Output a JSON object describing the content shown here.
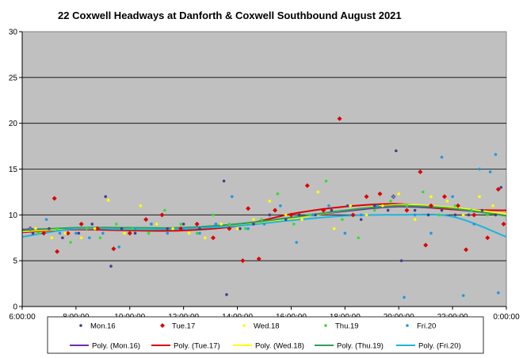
{
  "chart_data": {
    "type": "scatter",
    "title": "22 Coxwell Headways at Danforth & Coxwell Southbound August 2021",
    "xlabel": "",
    "ylabel": "",
    "x_unit": "time of day (hours)",
    "xlim": [
      6,
      24
    ],
    "ylim": [
      0,
      30
    ],
    "x_ticks": [
      "6:00:00",
      "8:00:00",
      "10:00:00",
      "12:00:00",
      "14:00:00",
      "16:00:00",
      "18:00:00",
      "20:00:00",
      "22:00:00",
      "0:00:00"
    ],
    "y_ticks": [
      "0",
      "5",
      "10",
      "15",
      "20",
      "25",
      "30"
    ],
    "grid": "horizontal",
    "plot_background": "#c0c0c0",
    "legend_position": "bottom",
    "series": [
      {
        "name": "Mon.16",
        "marker": "dot",
        "color": "#4b3c8c",
        "x": [
          6.4,
          7.0,
          7.5,
          8.1,
          8.6,
          9.1,
          9.3,
          9.7,
          10.2,
          10.8,
          11.4,
          12.0,
          12.6,
          13.2,
          13.5,
          13.6,
          14.1,
          14.6,
          15.2,
          15.8,
          16.3,
          16.9,
          17.5,
          18.1,
          18.6,
          19.1,
          19.6,
          19.9,
          20.1,
          20.6,
          21.1,
          21.6,
          22.1,
          22.6,
          23.1,
          23.6,
          23.8
        ],
        "y": [
          8,
          8.5,
          7.5,
          8,
          9,
          12,
          4.4,
          8.5,
          8,
          9,
          8.5,
          9,
          8.5,
          9,
          13.7,
          1.3,
          8.5,
          9,
          10,
          9.5,
          10,
          10,
          10.5,
          11,
          9.5,
          11,
          10.5,
          17,
          5,
          10.5,
          10,
          10.5,
          10,
          10,
          10.5,
          10,
          13
        ]
      },
      {
        "name": "Tue.17",
        "marker": "diamond",
        "color": "#dd0000",
        "x": [
          6.3,
          6.8,
          7.2,
          7.3,
          7.7,
          8.2,
          8.8,
          9.4,
          10.0,
          10.6,
          11.2,
          11.9,
          12.5,
          13.1,
          13.7,
          14.2,
          14.4,
          14.8,
          15.4,
          16.0,
          16.6,
          17.2,
          17.8,
          18.3,
          18.8,
          19.3,
          19.8,
          20.3,
          20.8,
          21.0,
          21.2,
          21.7,
          22.2,
          22.5,
          22.8,
          23.3,
          23.7,
          23.9
        ],
        "y": [
          8.5,
          8,
          11.8,
          6,
          8,
          9,
          8.5,
          6.3,
          8,
          9.5,
          10,
          8.5,
          9,
          7.5,
          8.5,
          5,
          10.7,
          5.2,
          10.5,
          10,
          13.2,
          10.5,
          20.5,
          10,
          12,
          12.3,
          12,
          10.5,
          14.7,
          6.7,
          11,
          12,
          11,
          6.2,
          10,
          7.5,
          12.8,
          9
        ]
      },
      {
        "name": "Wed.18",
        "marker": "dot",
        "color": "#ffff00",
        "x": [
          6.5,
          7.1,
          7.6,
          8.2,
          8.7,
          9.2,
          9.8,
          10.4,
          11.0,
          11.6,
          12.2,
          12.8,
          13.4,
          14.0,
          14.6,
          15.2,
          15.8,
          16.4,
          17.0,
          17.6,
          18.2,
          18.8,
          19.4,
          20.0,
          20.6,
          21.2,
          21.8,
          22.4,
          23.0,
          23.5
        ],
        "y": [
          8.5,
          7.5,
          8,
          7.5,
          8.5,
          11.6,
          8,
          11,
          9,
          8.5,
          8,
          7.5,
          9,
          8.5,
          9.5,
          11.5,
          10,
          9.5,
          12.5,
          8.5,
          11,
          10,
          11,
          12.3,
          9.5,
          12,
          11.5,
          10,
          12,
          11
        ]
      },
      {
        "name": "Thu.19",
        "marker": "dot",
        "color": "#33dd33",
        "x": [
          6.6,
          7.3,
          7.8,
          8.4,
          8.9,
          9.5,
          10.1,
          10.7,
          11.3,
          11.9,
          12.5,
          13.1,
          13.7,
          14.3,
          14.9,
          15.5,
          16.1,
          16.7,
          17.3,
          17.9,
          18.5,
          19.1,
          19.7,
          20.3,
          20.9,
          21.5,
          22.1,
          22.7,
          23.3
        ],
        "y": [
          8,
          8.5,
          7,
          8.5,
          7.5,
          9,
          8.5,
          8,
          10.5,
          9,
          8,
          10,
          9,
          8.5,
          9.5,
          12.3,
          9,
          10,
          13.7,
          9.5,
          7.5,
          10.5,
          11.5,
          11,
          12.5,
          10,
          11,
          10.5,
          10
        ]
      },
      {
        "name": "Fri.20",
        "marker": "dot",
        "color": "#1e9ae0",
        "x": [
          6.3,
          6.9,
          7.4,
          8.0,
          8.5,
          9.0,
          9.6,
          10.2,
          10.8,
          11.4,
          12.0,
          12.6,
          13.2,
          13.8,
          14.4,
          15.0,
          15.6,
          16.2,
          16.8,
          17.4,
          18.0,
          18.6,
          19.2,
          19.8,
          20.2,
          20.6,
          21.2,
          21.6,
          22.0,
          22.4,
          22.8,
          23.0,
          23.4,
          23.6,
          23.7
        ],
        "y": [
          8.5,
          9.5,
          8,
          8,
          7.5,
          8,
          6.5,
          8.5,
          9,
          8,
          8.5,
          8,
          9,
          12,
          8.5,
          9,
          11,
          7,
          10,
          11,
          8,
          10,
          11,
          12,
          1,
          10,
          8,
          16.3,
          12,
          1.2,
          9,
          15,
          14.7,
          16.6,
          1.5
        ]
      }
    ],
    "trendlines": [
      {
        "name": "Poly. (Mon.16)",
        "color": "#7030a0",
        "x": [
          6,
          8,
          10,
          12,
          14,
          16,
          18,
          20,
          22,
          24
        ],
        "y": [
          8.4,
          8.5,
          8.5,
          8.6,
          9,
          9.7,
          10.4,
          10.9,
          10.6,
          10.0
        ]
      },
      {
        "name": "Poly. (Tue.17)",
        "color": "#dd0000",
        "x": [
          6,
          8,
          10,
          12,
          14,
          16,
          18,
          20,
          22,
          24
        ],
        "y": [
          8.1,
          8.4,
          8.3,
          8.3,
          8.8,
          10.1,
          10.9,
          11.2,
          10.6,
          10.5
        ]
      },
      {
        "name": "Poly. (Wed.18)",
        "color": "#ffff00",
        "x": [
          6,
          8,
          10,
          12,
          14,
          16,
          18,
          20,
          22,
          24
        ],
        "y": [
          8.2,
          8.5,
          8.5,
          8.5,
          8.9,
          9.6,
          10.5,
          11.1,
          10.8,
          10.1
        ]
      },
      {
        "name": "Poly. (Thu.19)",
        "color": "#2ca05a",
        "x": [
          6,
          8,
          10,
          12,
          14,
          16,
          18,
          20,
          22,
          24
        ],
        "y": [
          8.3,
          8.6,
          8.6,
          8.6,
          9,
          9.7,
          10.5,
          11.0,
          10.7,
          9.9
        ]
      },
      {
        "name": "Poly. (Fri.20)",
        "color": "#1fb4dc",
        "x": [
          6,
          8,
          10,
          12,
          14,
          16,
          18,
          20,
          22,
          24
        ],
        "y": [
          7.6,
          8.5,
          8.4,
          8.5,
          8.8,
          9.4,
          9.9,
          10.0,
          9.8,
          7.6
        ]
      }
    ]
  }
}
